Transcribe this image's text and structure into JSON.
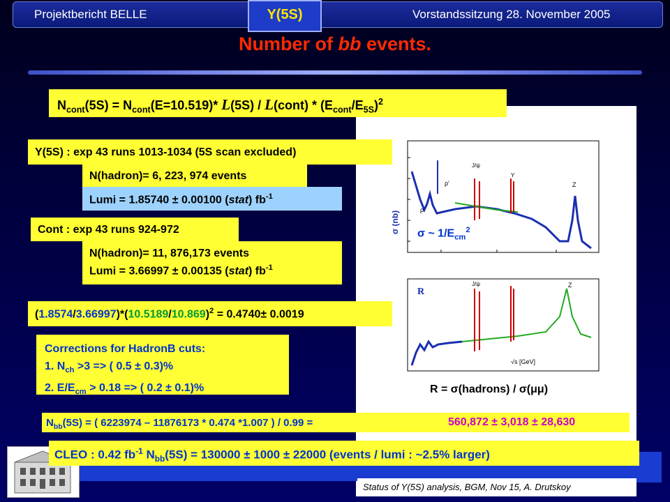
{
  "header": {
    "left": "Projektbericht BELLE",
    "tab": "Y(5S)",
    "right": "Vorstandssitzung 28. November 2005"
  },
  "title": {
    "prefix": "Number of ",
    "bb": "bb",
    "suffix": " events."
  },
  "formula": {
    "n": "N",
    "cont": "cont",
    "a": "(5S) = N",
    "b": "(E=10.519)* ",
    "L": "L",
    "c": "(5S) / ",
    "d": "(cont) * (E",
    "e": "/E",
    "f": "5S",
    "g": ")",
    "sq": "2"
  },
  "y5s": {
    "runs": "Y(5S)  : exp 43 runs 1013-1034 (5S scan excluded)",
    "nhadron": "N(hadron)= 6, 223, 974 events",
    "lumi_a": "Lumi = 1.85740 ± 0.00100 (",
    "stat": "stat",
    "lumi_b": ") fb",
    "inv": "-1"
  },
  "cont": {
    "runs": "Cont  : exp 43 runs 924-972",
    "nhadron": "N(hadron)= 11, 876,173 events",
    "lumi_a": "Lumi = 3.66997 ± 0.00135 (",
    "stat": "stat",
    "lumi_b": ") fb",
    "inv": "-1"
  },
  "ratio": {
    "p1": "(",
    "v1": "1.8574",
    "s1": "/",
    "v2": "3.66997",
    "p2": ")*(",
    "v3": "10.5189",
    "s2": "/",
    "v4": "10.869",
    "p3": ")",
    "sq": "2",
    "res": " = 0.4740± 0.0019"
  },
  "corrections": {
    "title": "Corrections for HadronB cuts:",
    "l1a": "1. N",
    "l1sub": "ch",
    "l1b": " >3             =>    ( 0.5 ± 0.3)%",
    "l2a": "2. E/E",
    "l2sub": "cm",
    "l2b": " > 0.18   =>    ( 0.2 ± 0.1)%"
  },
  "nbb": {
    "a": "N",
    "sub": "bb",
    "b": "(5S) = ( 6223974 – 11876173 * 0.474 *1.007 ) / 0.99 =",
    "result": "560,872 ± 3,018 ± 28,630"
  },
  "cleo": {
    "a": "CLEO :  0.42 fb",
    "inv": "-1",
    "b": "   N",
    "sub": "bb",
    "c": "(5S) = 130000 ± 1000 ± 22000   (events / lumi : ~2.5% larger)"
  },
  "plots": {
    "sigma_label": "σ ~ 1/E",
    "sigma_sub": "cm",
    "sigma_sup": "2",
    "r_caption": "R = σ(hadrons) / σ(μμ)",
    "top_axis": "σ (nb)",
    "bottom_axis": "R",
    "xunit": "√s [GeV]"
  },
  "footer": {
    "status": "Status of Y(5S) analysis, BGM,  Nov 15,  A. Drutskoy"
  },
  "colors": {
    "yellow": "#ffff33",
    "lightblue": "#9dd2ff",
    "title": "#ff2a00",
    "tab": "#ffe600"
  }
}
